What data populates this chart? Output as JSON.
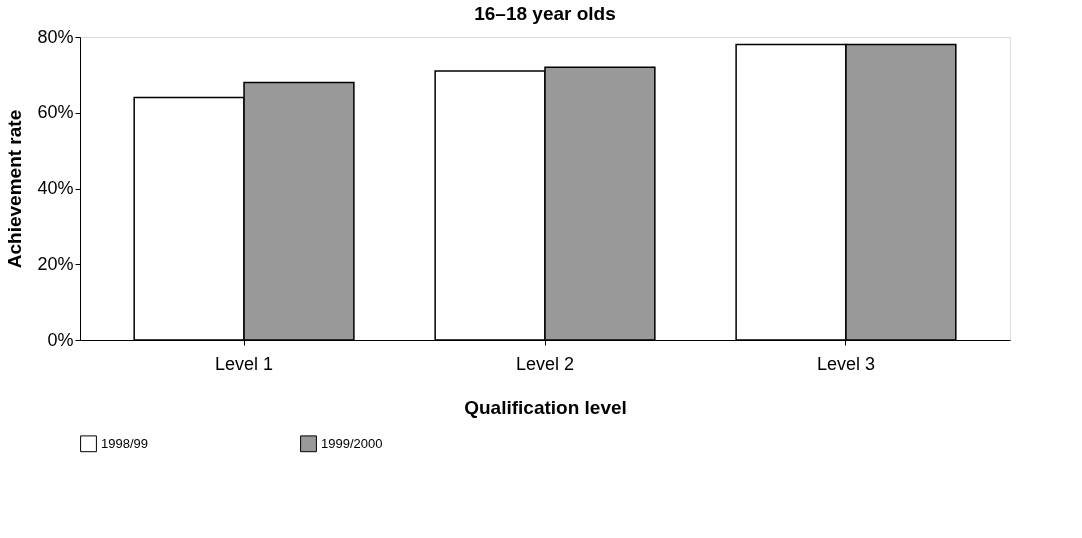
{
  "chart_data": {
    "type": "bar",
    "title": "16–18 year olds",
    "xlabel": "Qualification level",
    "ylabel": "Achievement rate",
    "categories": [
      "Level 1",
      "Level 2",
      "Level 3"
    ],
    "series": [
      {
        "name": "1998/99",
        "color": "#ffffff",
        "values": [
          64,
          71,
          78
        ]
      },
      {
        "name": "1999/2000",
        "color": "#999999",
        "values": [
          68,
          72,
          78
        ]
      }
    ],
    "ylim": [
      0,
      80
    ],
    "yticks": [
      {
        "value": 0,
        "label": "0%"
      },
      {
        "value": 20,
        "label": "20%"
      },
      {
        "value": 40,
        "label": "40%"
      },
      {
        "value": 60,
        "label": "60%"
      },
      {
        "value": 80,
        "label": "80%"
      }
    ],
    "grid": false,
    "legend": "bottom"
  }
}
